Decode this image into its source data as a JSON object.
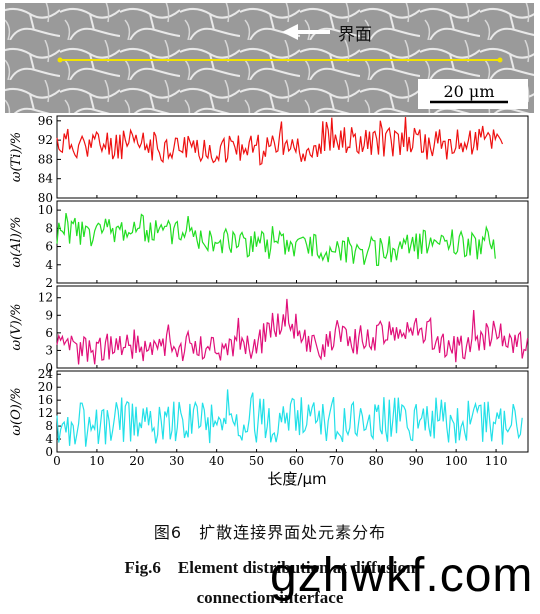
{
  "micrograph": {
    "label": "界面",
    "scale_bar": "20 μm"
  },
  "chart_data": {
    "type": "line",
    "xlabel": "长度/μm",
    "xlim": [
      0,
      118
    ],
    "xticks": [
      0,
      10,
      20,
      30,
      40,
      50,
      60,
      70,
      80,
      90,
      100,
      110
    ],
    "panels": [
      {
        "ylabel": "ω(Ti)/%",
        "color": "#ee1111",
        "ylim": [
          80,
          97
        ],
        "yticks": [
          80,
          84,
          88,
          92,
          96
        ],
        "mean": 91,
        "amp": 3.2,
        "seed": 11,
        "profile": [
          [
            0,
            91.5
          ],
          [
            30,
            90.5
          ],
          [
            55,
            90
          ],
          [
            75,
            92
          ],
          [
            100,
            91
          ],
          [
            112,
            93
          ]
        ]
      },
      {
        "ylabel": "ω(Al)/%",
        "color": "#22dd22",
        "ylim": [
          2,
          11
        ],
        "yticks": [
          2,
          4,
          6,
          8,
          10
        ],
        "mean": 7,
        "amp": 1.6,
        "seed": 23,
        "profile": [
          [
            0,
            7.5
          ],
          [
            20,
            8
          ],
          [
            45,
            6.5
          ],
          [
            60,
            6
          ],
          [
            80,
            5.5
          ],
          [
            95,
            6.5
          ],
          [
            110,
            6
          ]
        ]
      },
      {
        "ylabel": "ω(V)/%",
        "color": "#e0107a",
        "ylim": [
          0,
          14
        ],
        "yticks": [
          0,
          3,
          6,
          9,
          12
        ],
        "mean": 3,
        "amp": 2.6,
        "seed": 37,
        "profile": [
          [
            0,
            3
          ],
          [
            50,
            4
          ],
          [
            57,
            9
          ],
          [
            65,
            4
          ],
          [
            78,
            5
          ],
          [
            92,
            7
          ],
          [
            98,
            3
          ],
          [
            110,
            6
          ],
          [
            118,
            3
          ]
        ]
      },
      {
        "ylabel": "ω(O)/%",
        "color": "#22e0e8",
        "ylim": [
          0,
          25
        ],
        "yticks": [
          0,
          4,
          8,
          12,
          16,
          20,
          24
        ],
        "mean": 9,
        "amp": 7,
        "seed": 53,
        "profile": [
          [
            0,
            8
          ],
          [
            30,
            9
          ],
          [
            60,
            10
          ],
          [
            90,
            10
          ],
          [
            117,
            9
          ]
        ]
      }
    ]
  },
  "caption": {
    "cn": "图6　扩散连接界面处元素分布",
    "en_line1": "Fig.6　Element distribution at diffusion",
    "en_line2": "connection interface"
  },
  "watermark": "gzhwkf.com"
}
